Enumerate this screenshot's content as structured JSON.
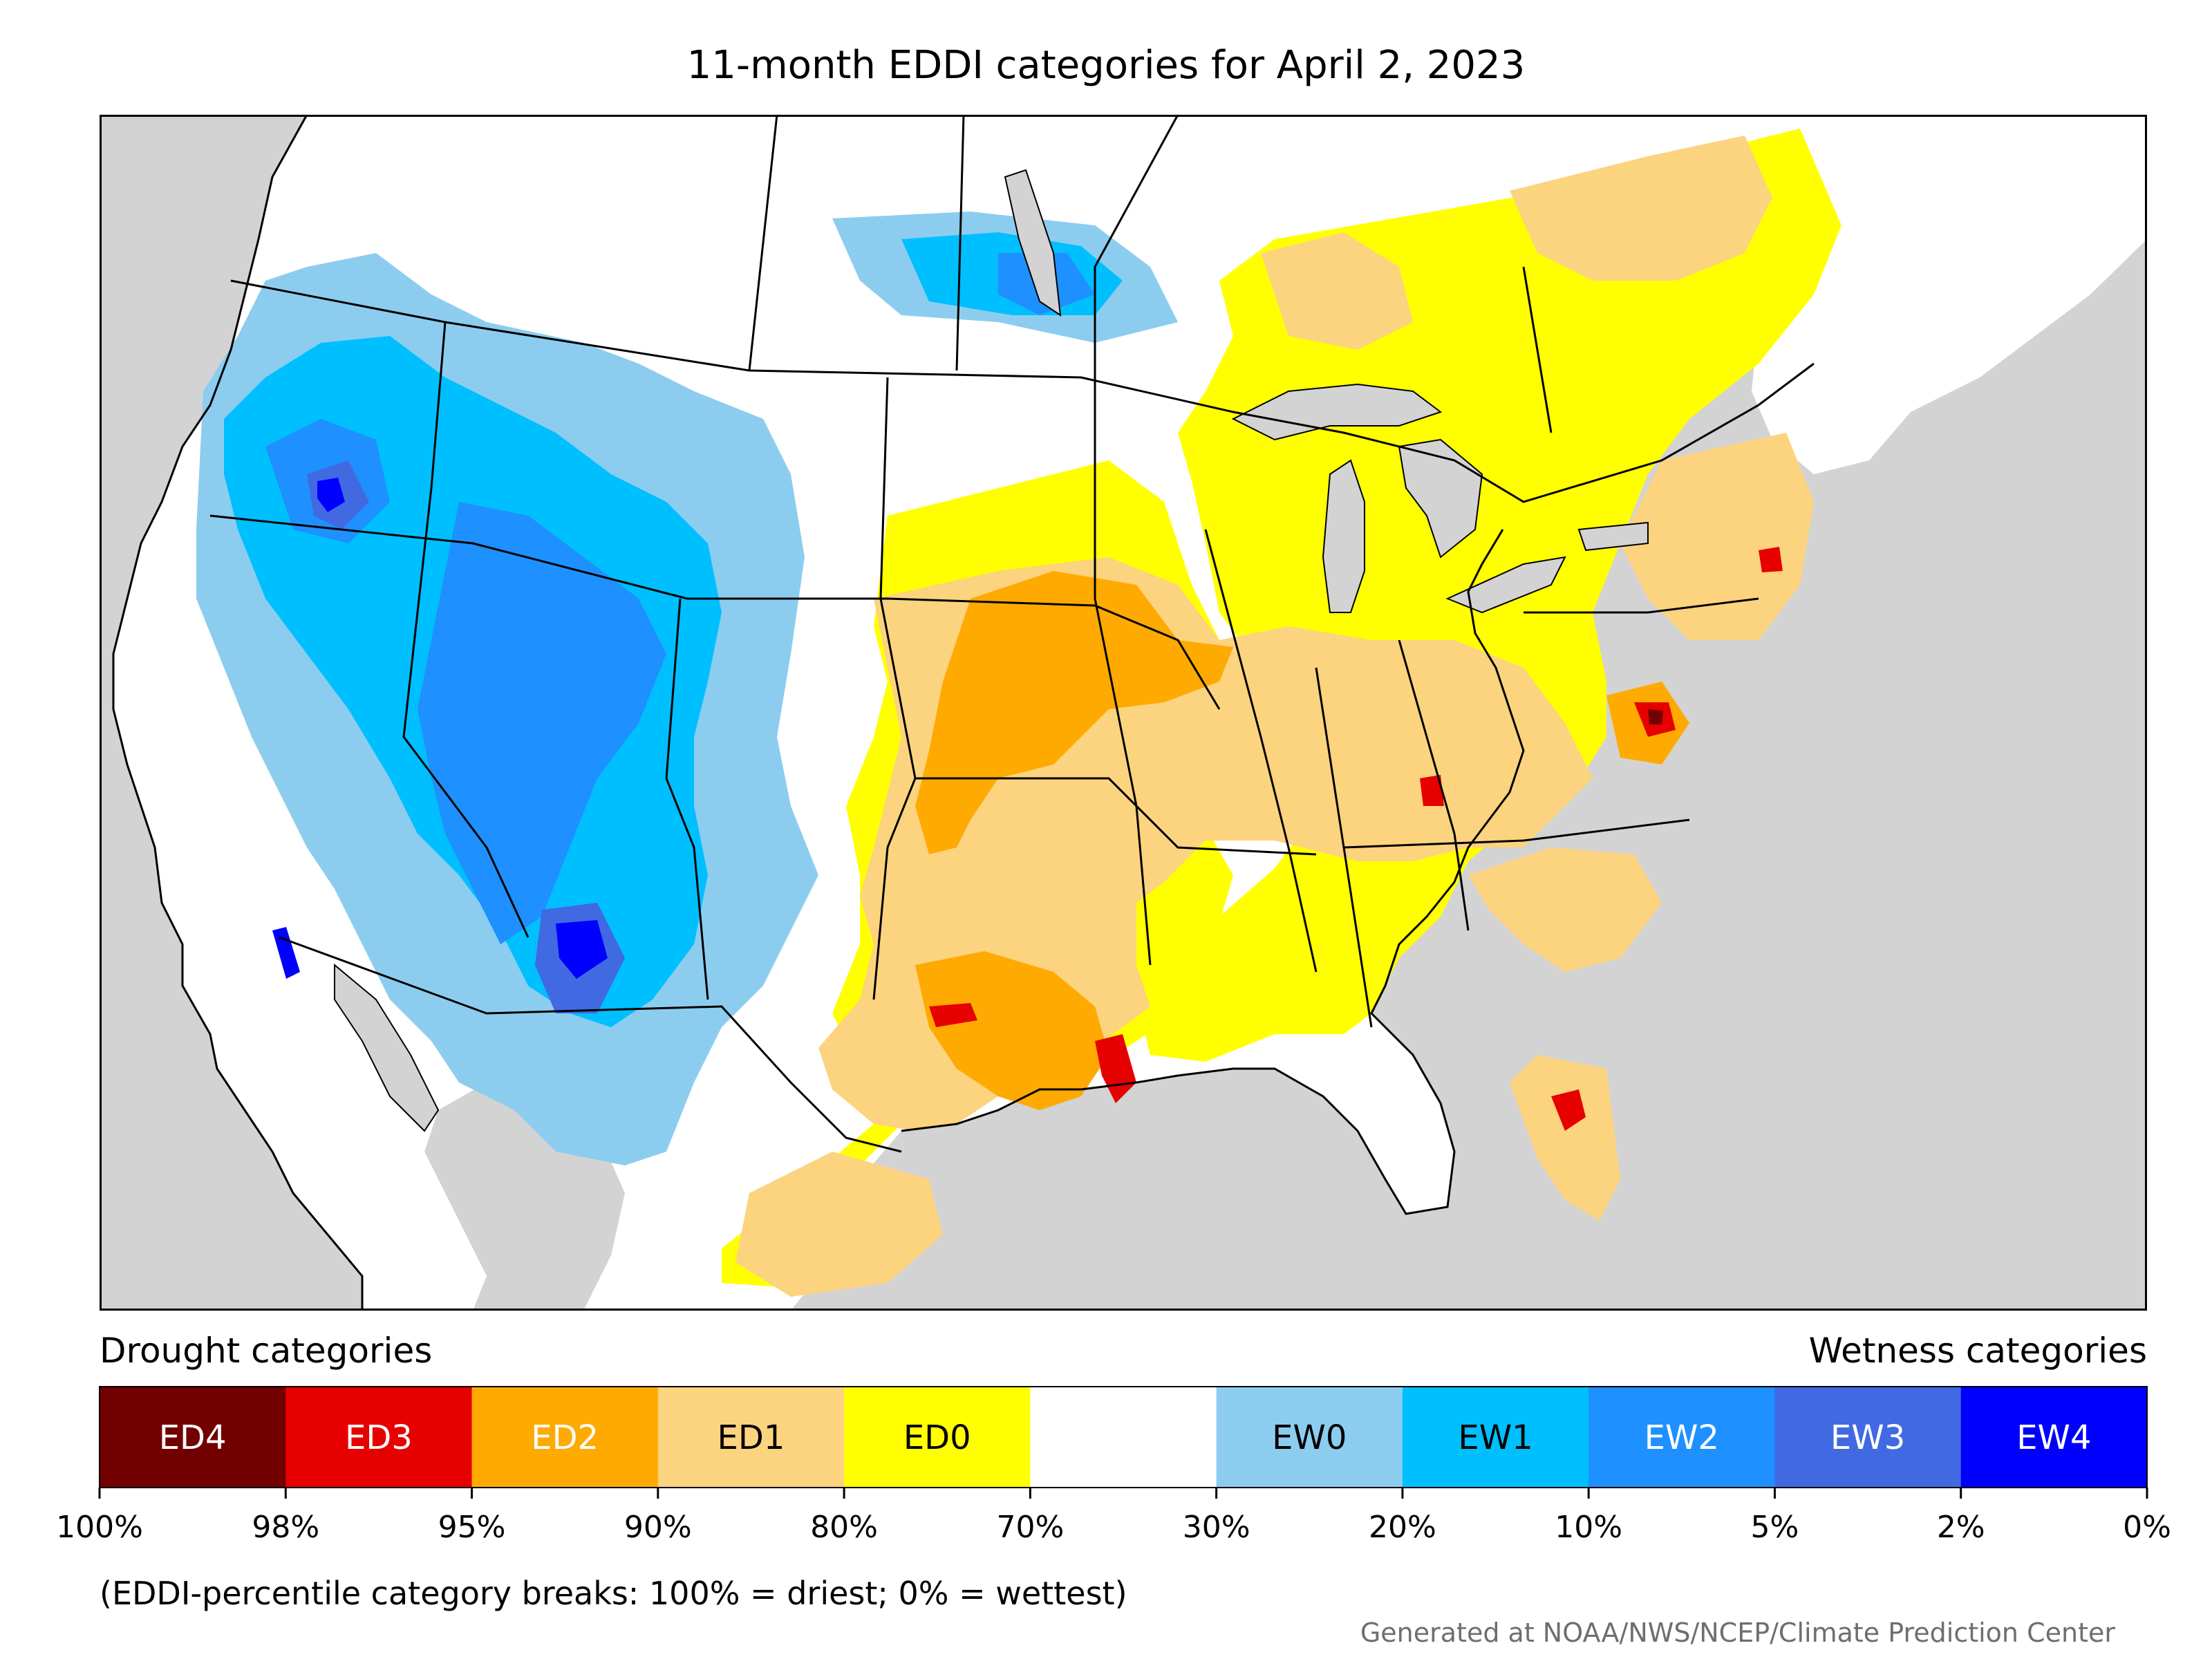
{
  "title": "11-month EDDI categories for April 2, 2023",
  "legend": {
    "drought_heading": "Drought categories",
    "wetness_heading": "Wetness categories",
    "categories": [
      {
        "label": "ED4",
        "color": "#730000",
        "text_color": "#ffffff"
      },
      {
        "label": "ED3",
        "color": "#e60000",
        "text_color": "#ffffff"
      },
      {
        "label": "ED2",
        "color": "#ffaa00",
        "text_color": "#ffffff"
      },
      {
        "label": "ED1",
        "color": "#fcd37f",
        "text_color": "#000000"
      },
      {
        "label": "ED0",
        "color": "#ffff00",
        "text_color": "#000000"
      },
      {
        "label": "",
        "color": "#ffffff",
        "text_color": "#000000"
      },
      {
        "label": "EW0",
        "color": "#8ccdef",
        "text_color": "#000000"
      },
      {
        "label": "EW1",
        "color": "#00bfff",
        "text_color": "#000000"
      },
      {
        "label": "EW2",
        "color": "#1e90ff",
        "text_color": "#ffffff"
      },
      {
        "label": "EW3",
        "color": "#4169e1",
        "text_color": "#ffffff"
      },
      {
        "label": "EW4",
        "color": "#0000ff",
        "text_color": "#ffffff"
      }
    ],
    "breaks": [
      "100%",
      "98%",
      "95%",
      "90%",
      "80%",
      "70%",
      "30%",
      "20%",
      "10%",
      "5%",
      "2%",
      "0%"
    ]
  },
  "note": "(EDDI-percentile category breaks: 100% = driest; 0% = wettest)",
  "credit": "Generated at NOAA/NWS/NCEP/Climate Prediction Center",
  "colors": {
    "ocean_land_mask": "#d3d3d3",
    "lakes": "#d3d3d3",
    "borders": "#000000"
  }
}
